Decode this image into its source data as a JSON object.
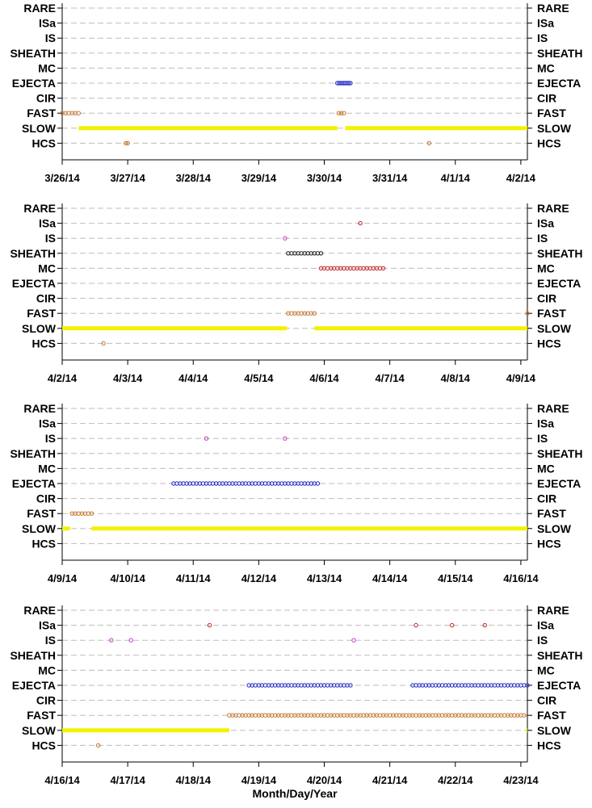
{
  "chart_data": [
    {
      "type": "scatter",
      "categories": [
        "RARE",
        "ISa",
        "IS",
        "SHEATH",
        "MC",
        "EJECTA",
        "CIR",
        "FAST",
        "SLOW",
        "HCS"
      ],
      "xticks": [
        "3/26/14",
        "3/27/14",
        "3/28/14",
        "3/29/14",
        "3/30/14",
        "3/31/14",
        "4/1/14",
        "4/2/14"
      ],
      "xlim": [
        0,
        7.1
      ],
      "grid": true,
      "series": [
        {
          "category": "EJECTA",
          "color": "#1f23c8",
          "x": [
            4.2,
            4.225,
            4.25,
            4.275,
            4.3,
            4.325,
            4.35,
            4.375,
            4.4
          ]
        },
        {
          "category": "FAST",
          "color": "#c8732a",
          "x": [
            0.0,
            0.05,
            0.1,
            0.15,
            0.2,
            0.25,
            4.22,
            4.26,
            4.3
          ]
        },
        {
          "category": "SLOW",
          "color": "#f2f200",
          "segments": [
            [
              0.25,
              4.2
            ],
            [
              4.32,
              7.1
            ]
          ]
        },
        {
          "category": "HCS",
          "color": "#c8732a",
          "x": [
            0.97,
            1.0,
            5.6
          ]
        }
      ]
    },
    {
      "type": "scatter",
      "categories": [
        "RARE",
        "ISa",
        "IS",
        "SHEATH",
        "MC",
        "EJECTA",
        "CIR",
        "FAST",
        "SLOW",
        "HCS"
      ],
      "xticks": [
        "4/2/14",
        "4/3/14",
        "4/4/14",
        "4/5/14",
        "4/6/14",
        "4/7/14",
        "4/8/14",
        "4/9/14"
      ],
      "xlim": [
        0,
        7.1
      ],
      "grid": true,
      "series": [
        {
          "category": "ISa",
          "color": "#c81e1e",
          "x": [
            4.55
          ]
        },
        {
          "category": "IS",
          "color": "#c83cc8",
          "x": [
            3.4
          ]
        },
        {
          "category": "SHEATH",
          "color": "#202020",
          "x": [
            3.45,
            3.5,
            3.55,
            3.6,
            3.65,
            3.7,
            3.75,
            3.8,
            3.85,
            3.9,
            3.95
          ]
        },
        {
          "category": "MC",
          "color": "#c81e1e",
          "x": [
            3.95,
            4.0,
            4.05,
            4.1,
            4.15,
            4.2,
            4.25,
            4.3,
            4.35,
            4.4,
            4.45,
            4.5,
            4.55,
            4.6,
            4.65,
            4.7,
            4.75,
            4.8,
            4.85,
            4.9
          ]
        },
        {
          "category": "FAST",
          "color": "#c8732a",
          "x": [
            3.45,
            3.5,
            3.55,
            3.6,
            3.65,
            3.7,
            3.75,
            3.8,
            3.85,
            7.1
          ]
        },
        {
          "category": "SLOW",
          "color": "#f2f200",
          "segments": [
            [
              0.0,
              3.43
            ],
            [
              3.85,
              7.1
            ]
          ]
        },
        {
          "category": "HCS",
          "color": "#c8732a",
          "x": [
            0.63
          ]
        }
      ]
    },
    {
      "type": "scatter",
      "categories": [
        "RARE",
        "ISa",
        "IS",
        "SHEATH",
        "MC",
        "EJECTA",
        "CIR",
        "FAST",
        "SLOW",
        "HCS"
      ],
      "xticks": [
        "4/9/14",
        "4/10/14",
        "4/11/14",
        "4/12/14",
        "4/13/14",
        "4/14/14",
        "4/15/14",
        "4/16/14"
      ],
      "xlim": [
        0,
        7.1
      ],
      "grid": true,
      "series": [
        {
          "category": "IS",
          "color": "#c83cc8",
          "x": [
            2.2,
            3.4
          ]
        },
        {
          "category": "EJECTA",
          "color": "#1f23c8",
          "x": [
            1.7,
            1.75,
            1.8,
            1.85,
            1.9,
            1.95,
            2.0,
            2.05,
            2.1,
            2.15,
            2.2,
            2.25,
            2.3,
            2.35,
            2.4,
            2.45,
            2.5,
            2.55,
            2.6,
            2.65,
            2.7,
            2.75,
            2.8,
            2.85,
            2.9,
            2.95,
            3.0,
            3.05,
            3.1,
            3.15,
            3.2,
            3.25,
            3.3,
            3.35,
            3.4,
            3.45,
            3.5,
            3.55,
            3.6,
            3.65,
            3.7,
            3.75,
            3.8,
            3.85,
            3.9
          ]
        },
        {
          "category": "FAST",
          "color": "#c8732a",
          "x": [
            0.15,
            0.2,
            0.25,
            0.3,
            0.35,
            0.4,
            0.45
          ]
        },
        {
          "category": "SLOW",
          "color": "#f2f200",
          "segments": [
            [
              0.0,
              0.12
            ],
            [
              0.45,
              7.1
            ]
          ]
        }
      ]
    },
    {
      "type": "scatter",
      "categories": [
        "RARE",
        "ISa",
        "IS",
        "SHEATH",
        "MC",
        "EJECTA",
        "CIR",
        "FAST",
        "SLOW",
        "HCS"
      ],
      "xticks": [
        "4/16/14",
        "4/17/14",
        "4/18/14",
        "4/19/14",
        "4/20/14",
        "4/21/14",
        "4/22/14",
        "4/23/14"
      ],
      "xlim": [
        0,
        7.1
      ],
      "xlabel": "Month/Day/Year",
      "grid": true,
      "series": [
        {
          "category": "ISa",
          "color": "#c81e1e",
          "x": [
            2.25,
            5.4,
            5.95,
            6.45
          ]
        },
        {
          "category": "IS",
          "color": "#c83cc8",
          "x": [
            0.75,
            1.05,
            4.45
          ]
        },
        {
          "category": "EJECTA",
          "color": "#1f23c8",
          "x": [
            2.85,
            2.9,
            2.95,
            3.0,
            3.05,
            3.1,
            3.15,
            3.2,
            3.25,
            3.3,
            3.35,
            3.4,
            3.45,
            3.5,
            3.55,
            3.6,
            3.65,
            3.7,
            3.75,
            3.8,
            3.85,
            3.9,
            3.95,
            4.0,
            4.05,
            4.1,
            4.15,
            4.2,
            4.25,
            4.3,
            4.35,
            4.4,
            5.35,
            5.4,
            5.45,
            5.5,
            5.55,
            5.6,
            5.65,
            5.7,
            5.75,
            5.8,
            5.85,
            5.9,
            5.95,
            6.0,
            6.05,
            6.1,
            6.15,
            6.2,
            6.25,
            6.3,
            6.35,
            6.4,
            6.45,
            6.5,
            6.55,
            6.6,
            6.65,
            6.7,
            6.75,
            6.8,
            6.85,
            6.9,
            6.95,
            7.0,
            7.05,
            7.1
          ]
        },
        {
          "category": "FAST",
          "color": "#c8732a",
          "x": [
            2.55,
            2.6,
            2.65,
            2.7,
            2.75,
            2.8,
            2.85,
            2.9,
            2.95,
            3.0,
            3.05,
            3.1,
            3.15,
            3.2,
            3.25,
            3.3,
            3.35,
            3.4,
            3.45,
            3.5,
            3.55,
            3.6,
            3.65,
            3.7,
            3.75,
            3.8,
            3.85,
            3.9,
            3.95,
            4.0,
            4.05,
            4.1,
            4.15,
            4.2,
            4.25,
            4.3,
            4.35,
            4.4,
            4.45,
            4.5,
            4.55,
            4.6,
            4.65,
            4.7,
            4.75,
            4.8,
            4.85,
            4.9,
            4.95,
            5.0,
            5.05,
            5.1,
            5.15,
            5.2,
            5.25,
            5.3,
            5.35,
            5.4,
            5.45,
            5.5,
            5.55,
            5.6,
            5.65,
            5.7,
            5.75,
            5.8,
            5.85,
            5.9,
            5.95,
            6.0,
            6.05,
            6.1,
            6.15,
            6.2,
            6.25,
            6.3,
            6.35,
            6.4,
            6.45,
            6.5,
            6.55,
            6.6,
            6.65,
            6.7,
            6.75,
            6.8,
            6.85,
            6.9,
            6.95,
            7.0,
            7.05
          ]
        },
        {
          "category": "SLOW",
          "color": "#f2f200",
          "segments": [
            [
              0.0,
              2.55
            ],
            [
              7.08,
              7.1
            ]
          ]
        },
        {
          "category": "HCS",
          "color": "#c8732a",
          "x": [
            0.55
          ]
        }
      ]
    }
  ]
}
